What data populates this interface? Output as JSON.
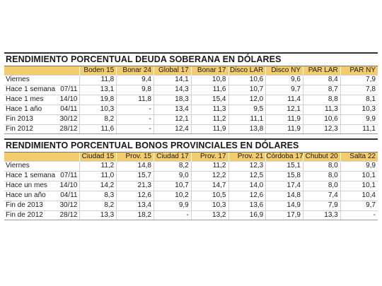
{
  "table1": {
    "title": "RENDIMIENTO PORCENTUAL DEUDA SOBERANA EN DÓLARES",
    "columns": [
      "Boden 15",
      "Bonar 24",
      "Global 17",
      "Bonar 17",
      "Disco LAR",
      "Disco NY",
      "PAR LAR",
      "PAR NY"
    ],
    "rows": [
      {
        "label": "Viernes",
        "date": "",
        "values": [
          "11,8",
          "9,4",
          "14,1",
          "10,8",
          "10,6",
          "9,6",
          "8,4",
          "7,9"
        ]
      },
      {
        "label": "Hace 1 semana",
        "date": "07/11",
        "values": [
          "13,1",
          "9,8",
          "14,3",
          "11,6",
          "10,7",
          "9,7",
          "8,7",
          "7,8"
        ]
      },
      {
        "label": "Hace 1 mes",
        "date": "14/10",
        "values": [
          "19,8",
          "11,8",
          "18,3",
          "15,4",
          "12,0",
          "11,4",
          "8,8",
          "8,1"
        ]
      },
      {
        "label": "Hace 1 año",
        "date": "04/11",
        "values": [
          "10,3",
          "-",
          "13,4",
          "11,3",
          "9,5",
          "12,1",
          "11,3",
          "10,3"
        ]
      },
      {
        "label": "Fin 2013",
        "date": "30/12",
        "values": [
          "8,2",
          "-",
          "12,1",
          "11,2",
          "11,1",
          "11,9",
          "10,6",
          "9,9"
        ]
      },
      {
        "label": "Fin 2012",
        "date": "28/12",
        "values": [
          "11,6",
          "-",
          "12,4",
          "11,9",
          "13,8",
          "11,9",
          "12,3",
          "11,1"
        ]
      }
    ]
  },
  "table2": {
    "title": "RENDIMIENTO PORCENTUAL BONOS PROVINCIALES EN DÓLARES",
    "columns": [
      "Ciudad 15",
      "Prov. 15",
      "Ciudad 17",
      "Prov. 17",
      "Prov. 21",
      "Córdoba 17",
      "Chubut 20",
      "Salta 22"
    ],
    "rows": [
      {
        "label": "Viernes",
        "date": "",
        "values": [
          "11,2",
          "14,8",
          "8,2",
          "11,2",
          "12,3",
          "15,1",
          "8,0",
          "9,9"
        ]
      },
      {
        "label": "Hace 1 semana",
        "date": "07/11",
        "values": [
          "11,0",
          "15,7",
          "9,0",
          "12,2",
          "12,5",
          "15,8",
          "8,0",
          "10,1"
        ]
      },
      {
        "label": "Hace un mes",
        "date": "14/10",
        "values": [
          "14,2",
          "21,3",
          "10,7",
          "14,7",
          "14,0",
          "17,4",
          "8,0",
          "10,1"
        ]
      },
      {
        "label": "Hace un año",
        "date": "04/11",
        "values": [
          "8,3",
          "12,6",
          "10,2",
          "10,5",
          "12,6",
          "14,8",
          "7,4",
          "10,4"
        ]
      },
      {
        "label": "Fin de 2013",
        "date": "30/12",
        "values": [
          "8,2",
          "13,4",
          "9,9",
          "10,3",
          "13,6",
          "14,9",
          "7,9",
          "9,7"
        ]
      },
      {
        "label": "Fin de 2012",
        "date": "28/12",
        "values": [
          "13,3",
          "18,2",
          "-",
          "13,2",
          "16,9",
          "17,9",
          "13,3",
          "-"
        ]
      }
    ]
  }
}
